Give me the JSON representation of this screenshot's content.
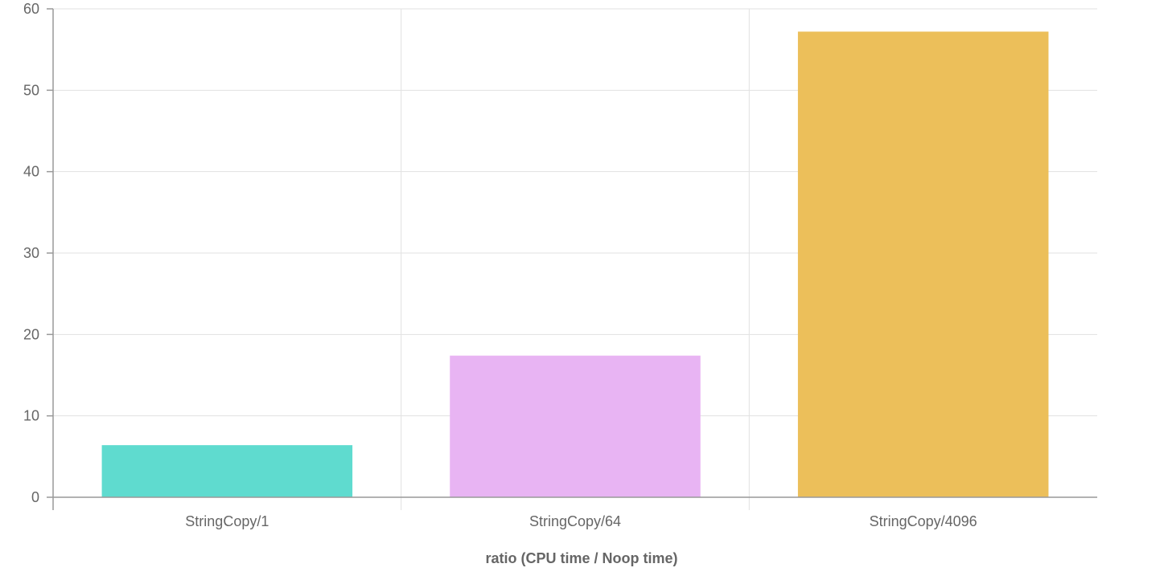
{
  "chart_data": {
    "type": "bar",
    "categories": [
      "StringCopy/1",
      "StringCopy/64",
      "StringCopy/4096"
    ],
    "values": [
      6.4,
      17.4,
      57.2
    ],
    "colors": [
      "#5fdbcf",
      "#e8b4f3",
      "#ecbf5a"
    ],
    "xlabel": "ratio (CPU time / Noop time)",
    "ylabel": "",
    "ylim": [
      0,
      60
    ],
    "yticks": [
      0,
      10,
      20,
      30,
      40,
      50,
      60
    ],
    "grid": true
  }
}
